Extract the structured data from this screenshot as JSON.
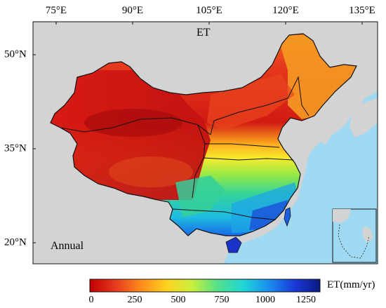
{
  "title": "ET",
  "panel_label": "Annual",
  "lon_labels": [
    "75°E",
    "90°E",
    "105°E",
    "120°E",
    "135°E"
  ],
  "lat_labels": [
    "50°N",
    "35°N",
    "20°N"
  ],
  "colorbar": {
    "unit": "ET(mm/yr)",
    "ticks": [
      "0",
      "250",
      "500",
      "750",
      "1000",
      "1250"
    ],
    "colors": [
      "#c00000",
      "#e63a1e",
      "#ff8a1c",
      "#ffd21f",
      "#c9f03c",
      "#52e08a",
      "#1fd6d6",
      "#1b8ef0",
      "#1a39d8",
      "#0a1a80"
    ]
  },
  "colors": {
    "ocean": "#9fd9f2",
    "land_outside": "#d3d3d3",
    "border": "#111111"
  }
}
